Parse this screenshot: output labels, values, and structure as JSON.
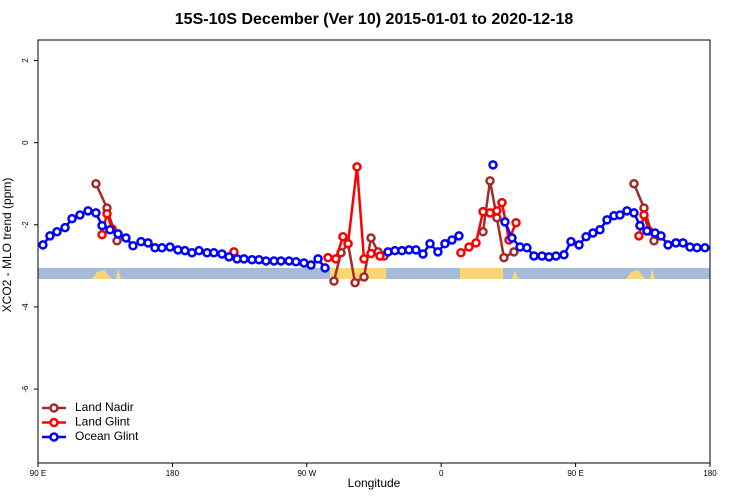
{
  "chart_data": {
    "type": "line",
    "title": "15S-10S December (Ver 10)   2015-01-01 to 2020-12-18",
    "x_label": "Longitude",
    "y_label": "XCO2 - MLO trend (ppm)",
    "xlim": [
      90,
      540
    ],
    "xticks": [
      {
        "value": 90,
        "label": "90 E"
      },
      180,
      {
        "value": 270,
        "label": "90 W"
      },
      {
        "value": 360,
        "label": "0"
      },
      {
        "value": 450,
        "label": "90 E"
      },
      180
    ],
    "ylim": [
      -7.8,
      2.5
    ],
    "yticks": [
      2,
      0,
      -2,
      -4,
      -6
    ],
    "legend": "bottomleft",
    "series": [
      {
        "name": "Land Nadir",
        "color": "#a52a2a",
        "x": [
          128.8,
          136.2,
          142.9,
          null,
          288.2,
          292.9,
          297.6,
          302.3,
          308.3,
          313.0,
          317.7,
          321.7,
          null,
          388.0,
          392.7,
          397.3,
          402.0,
          408.7,
          null,
          489.1,
          495.8,
          502.5
        ],
        "values": [
          -1.0,
          -1.59,
          -2.39,
          null,
          -3.37,
          -2.68,
          -2.46,
          -3.41,
          -3.27,
          -2.32,
          -2.66,
          -2.76,
          null,
          -2.17,
          -0.93,
          -1.83,
          -2.8,
          -2.66,
          null,
          -1.0,
          -1.59,
          -2.39
        ]
      },
      {
        "name": "Land Glint",
        "color": "#ff0000",
        "x": [
          132.9,
          136.2,
          139.6,
          null,
          221.2,
          null,
          284.2,
          289.5,
          294.2,
          297.6,
          303.6,
          308.3,
          313.0,
          319.0,
          null,
          373.2,
          378.6,
          383.3,
          388.0,
          392.7,
          397.3,
          400.7,
          405.4,
          410.1,
          null,
          492.4,
          495.8,
          499.1
        ],
        "values": [
          -2.24,
          -1.73,
          -2.1,
          null,
          -2.66,
          null,
          -2.8,
          -2.83,
          -2.29,
          -2.46,
          -0.59,
          -2.83,
          -2.7,
          -2.76,
          null,
          -2.68,
          -2.54,
          -2.44,
          -1.68,
          -1.71,
          -1.66,
          -1.46,
          -2.37,
          -1.95,
          null,
          -2.27,
          -1.76,
          -2.15
        ]
      },
      {
        "name": "Ocean Glint",
        "color": "#0000ff",
        "x": [
          93.3,
          98.0,
          102.7,
          108.1,
          112.8,
          118.1,
          123.5,
          128.8,
          132.9,
          138.2,
          143.6,
          148.9,
          153.6,
          159.0,
          163.7,
          168.3,
          173.0,
          178.4,
          183.7,
          188.4,
          193.1,
          197.8,
          203.2,
          207.8,
          213.2,
          217.9,
          223.3,
          227.9,
          233.3,
          238.0,
          242.7,
          248.0,
          252.7,
          258.1,
          262.8,
          268.1,
          272.8,
          277.5,
          282.2,
          null,
          324.4,
          329.0,
          333.7,
          338.4,
          343.1,
          347.8,
          352.5,
          357.8,
          362.5,
          367.2,
          371.9,
          null,
          394.7,
          null,
          402.7,
          407.4,
          412.8,
          417.4,
          422.1,
          427.5,
          432.2,
          436.9,
          442.2,
          446.9,
          452.3,
          457.0,
          461.6,
          466.3,
          471.0,
          475.7,
          479.7,
          484.4,
          489.1,
          493.1,
          497.8,
          503.2,
          507.2,
          511.9,
          517.2,
          521.9,
          526.6,
          531.3,
          536.6
        ],
        "values": [
          -2.49,
          -2.27,
          -2.17,
          -2.07,
          -1.85,
          -1.76,
          -1.66,
          -1.71,
          -2.02,
          -2.12,
          -2.22,
          -2.32,
          -2.51,
          -2.41,
          -2.44,
          -2.56,
          -2.56,
          -2.54,
          -2.61,
          -2.63,
          -2.68,
          -2.63,
          -2.68,
          -2.68,
          -2.71,
          -2.78,
          -2.83,
          -2.83,
          -2.85,
          -2.85,
          -2.88,
          -2.88,
          -2.88,
          -2.88,
          -2.9,
          -2.93,
          -2.98,
          -2.83,
          -3.05,
          null,
          -2.66,
          -2.63,
          -2.63,
          -2.61,
          -2.61,
          -2.71,
          -2.46,
          -2.66,
          -2.46,
          -2.37,
          -2.27,
          null,
          -0.54,
          null,
          -1.93,
          -2.32,
          -2.54,
          -2.56,
          -2.76,
          -2.76,
          -2.78,
          -2.76,
          -2.73,
          -2.41,
          -2.49,
          -2.29,
          -2.2,
          -2.12,
          -1.88,
          -1.78,
          -1.76,
          -1.66,
          -1.71,
          -2.02,
          -2.15,
          -2.2,
          -2.27,
          -2.49,
          -2.44,
          -2.44,
          -2.54,
          -2.56,
          -2.56
        ]
      }
    ]
  }
}
